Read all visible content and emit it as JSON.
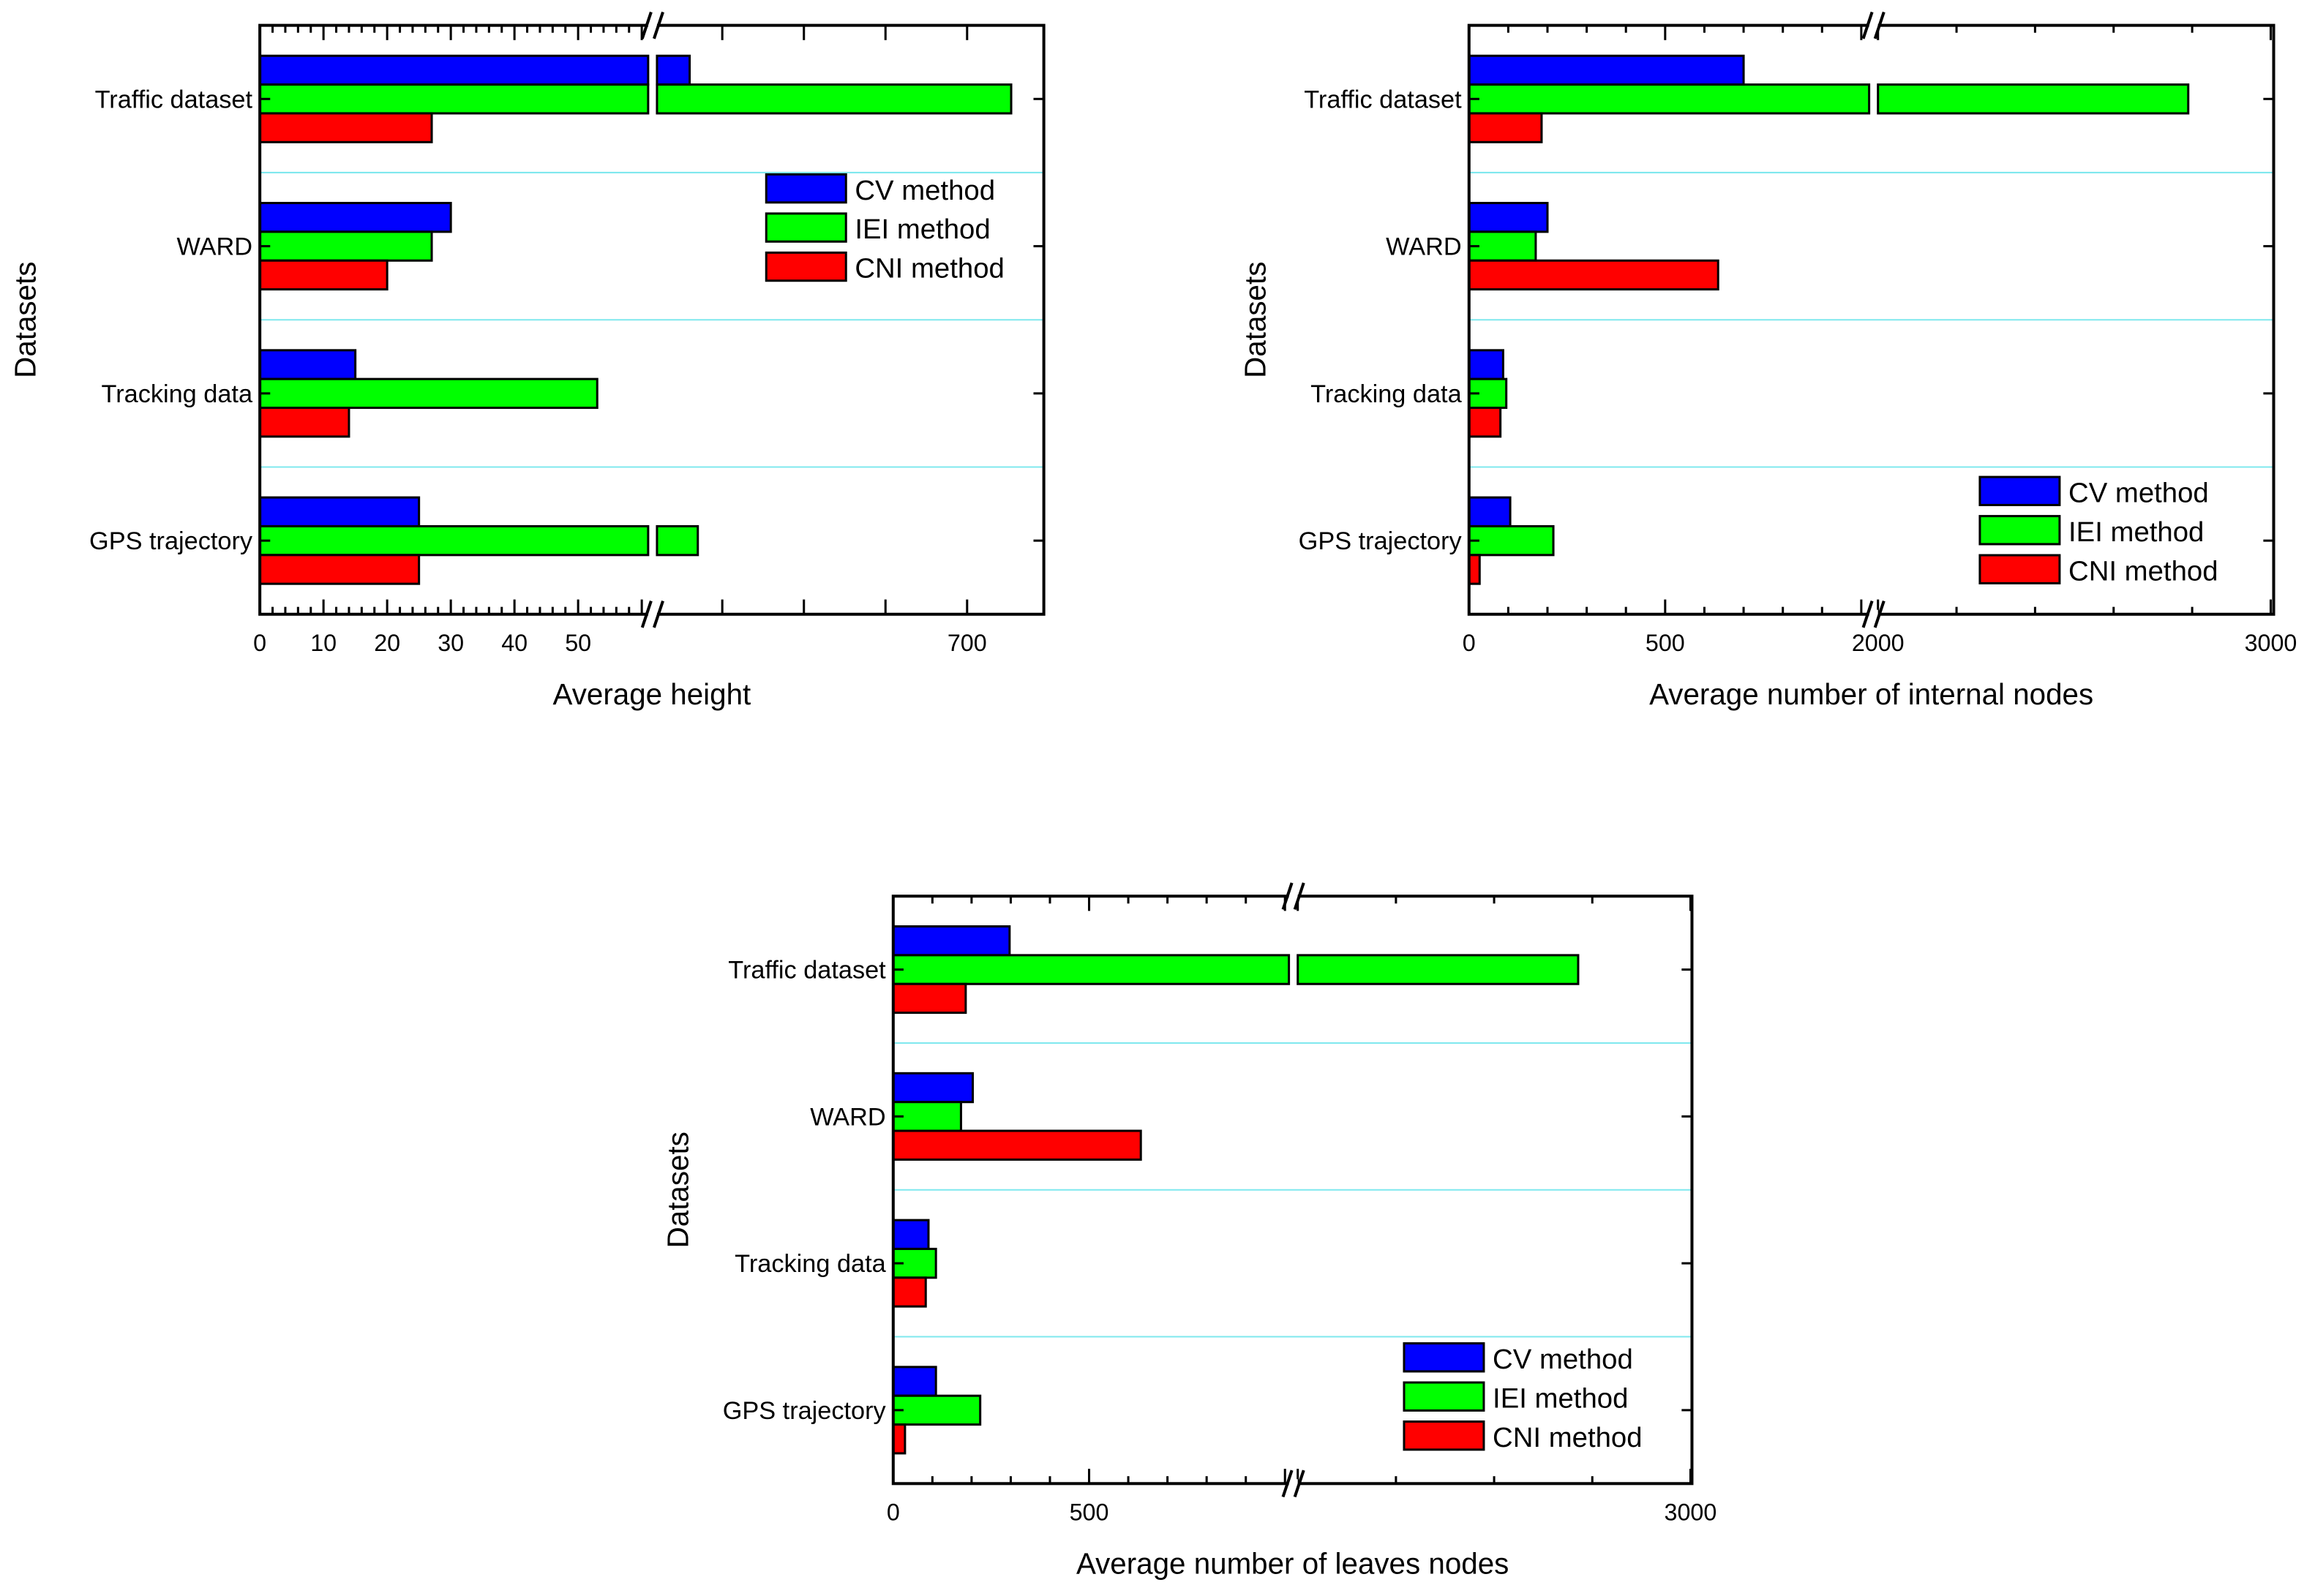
{
  "colors": {
    "CV method": "#0000ff",
    "IEI method": "#00ff00",
    "CNI method": "#ff0000",
    "separator": "#7fe8ee"
  },
  "chart_data": [
    {
      "type": "bar",
      "orientation": "horizontal",
      "title": "",
      "xlabel": "Average height",
      "ylabel": "Datasets",
      "categories": [
        "Traffic dataset",
        "WARD",
        "Tracking data",
        "GPS trajectory"
      ],
      "series": [
        {
          "name": "CV method",
          "values": [
            530,
            30,
            15,
            25
          ]
        },
        {
          "name": "IEI method",
          "values": [
            727,
            27,
            53,
            535
          ]
        },
        {
          "name": "CNI method",
          "values": [
            27,
            20,
            14,
            25
          ]
        }
      ],
      "axis_segments": [
        [
          0,
          61
        ],
        [
          510,
          747
        ]
      ],
      "xticks": [
        0,
        10,
        20,
        30,
        40,
        50,
        700
      ],
      "legend_position": "center-right"
    },
    {
      "type": "bar",
      "orientation": "horizontal",
      "title": "",
      "xlabel": "Average number of internal nodes",
      "ylabel": "Datasets",
      "categories": [
        "Traffic dataset",
        "WARD",
        "Tracking data",
        "GPS trajectory"
      ],
      "series": [
        {
          "name": "CV method",
          "values": [
            700,
            200,
            87,
            105
          ]
        },
        {
          "name": "IEI method",
          "values": [
            2790,
            170,
            95,
            215
          ]
        },
        {
          "name": "CNI method",
          "values": [
            185,
            635,
            80,
            27
          ]
        }
      ],
      "axis_segments": [
        [
          0,
          1020
        ],
        [
          2000,
          3000
        ]
      ],
      "xticks": [
        0,
        500,
        2000,
        3000
      ],
      "legend_position": "bottom-right"
    },
    {
      "type": "bar",
      "orientation": "horizontal",
      "title": "",
      "xlabel": "Average number of leaves nodes",
      "ylabel": "Datasets",
      "categories": [
        "Traffic dataset",
        "WARD",
        "Tracking data",
        "GPS trajectory"
      ],
      "series": [
        {
          "name": "CV method",
          "values": [
            297,
            203,
            90,
            109
          ]
        },
        {
          "name": "IEI method",
          "values": [
            2714,
            173,
            109,
            222
          ]
        },
        {
          "name": "CNI method",
          "values": [
            185,
            632,
            83,
            30
          ]
        }
      ],
      "axis_segments": [
        [
          0,
          1010
        ],
        [
          2000,
          3000
        ]
      ],
      "xticks": [
        0,
        500,
        3000
      ],
      "legend_position": "bottom-right"
    }
  ]
}
